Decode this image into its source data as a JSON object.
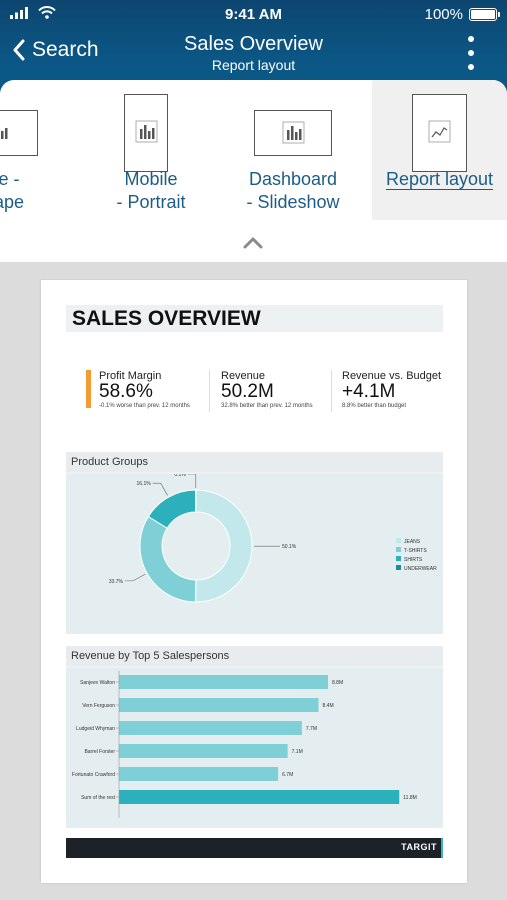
{
  "status_bar": {
    "time": "9:41 AM",
    "battery": "100%"
  },
  "nav": {
    "back_label": "Search",
    "title": "Sales Overview",
    "subtitle": "Report layout"
  },
  "layout_options": [
    {
      "label": "bile -\nscape",
      "icon": "landscape-thumbnail-icon",
      "selected": false
    },
    {
      "label": "Mobile\n- Portrait",
      "icon": "portrait-thumbnail-icon",
      "selected": false
    },
    {
      "label": "Dashboard\n- Slideshow",
      "icon": "dashboard-thumbnail-icon",
      "selected": false
    },
    {
      "label": "Report layout",
      "icon": "report-thumbnail-icon",
      "selected": true
    }
  ],
  "report": {
    "title": "SALES OVERVIEW",
    "kpis": [
      {
        "label": "Profit Margin",
        "value": "58.6%",
        "note": "-0.1% worse than prev. 12 months",
        "accent": "#f39c34"
      },
      {
        "label": "Revenue",
        "value": "50.2M",
        "note": "32.8% better than prev. 12 months"
      },
      {
        "label": "Revenue vs. Budget",
        "value": "+4.1M",
        "note": "8.8% better than budget"
      }
    ],
    "product_groups_title": "Product Groups",
    "salespersons_title": "Revenue by Top 5 Salespersons",
    "footer_logo": "TARGIT"
  },
  "colors": {
    "header": "#0b5684",
    "link": "#1c5d86",
    "teal_light": "#a7e0e5",
    "teal_mid": "#7fd0d6",
    "teal_dark": "#2bb0bc"
  },
  "chart_data": [
    {
      "type": "pie",
      "title": "Product Groups",
      "categories": [
        "JEANS",
        "T-SHIRTS",
        "SHIRTS",
        "UNDERWEAR"
      ],
      "values": [
        50.1,
        33.7,
        16.1,
        0.1
      ],
      "labels": [
        "50.1%",
        "33.7%",
        "16.1%",
        "0.1%"
      ],
      "colors": [
        "#c3e8ec",
        "#7fd0d6",
        "#2bb0bc",
        "#1a8f9a"
      ],
      "legend": "right"
    },
    {
      "type": "bar",
      "title": "Revenue by Top 5 Salespersons",
      "orientation": "horizontal",
      "categories": [
        "Sanjeev Walton",
        "Vern Ferguson",
        "Ludgeid Whyman",
        "Barrel Forster",
        "Fortunato Crawford",
        "Sum of the rest"
      ],
      "values": [
        8.8,
        8.4,
        7.7,
        7.1,
        6.7,
        11.8
      ],
      "labels": [
        "8.8M",
        "8.4M",
        "7.7M",
        "7.1M",
        "6.7M",
        "11.8M"
      ],
      "colors": [
        "#7fd0d6",
        "#7fd0d6",
        "#7fd0d6",
        "#7fd0d6",
        "#7fd0d6",
        "#2bb0bc"
      ]
    }
  ]
}
